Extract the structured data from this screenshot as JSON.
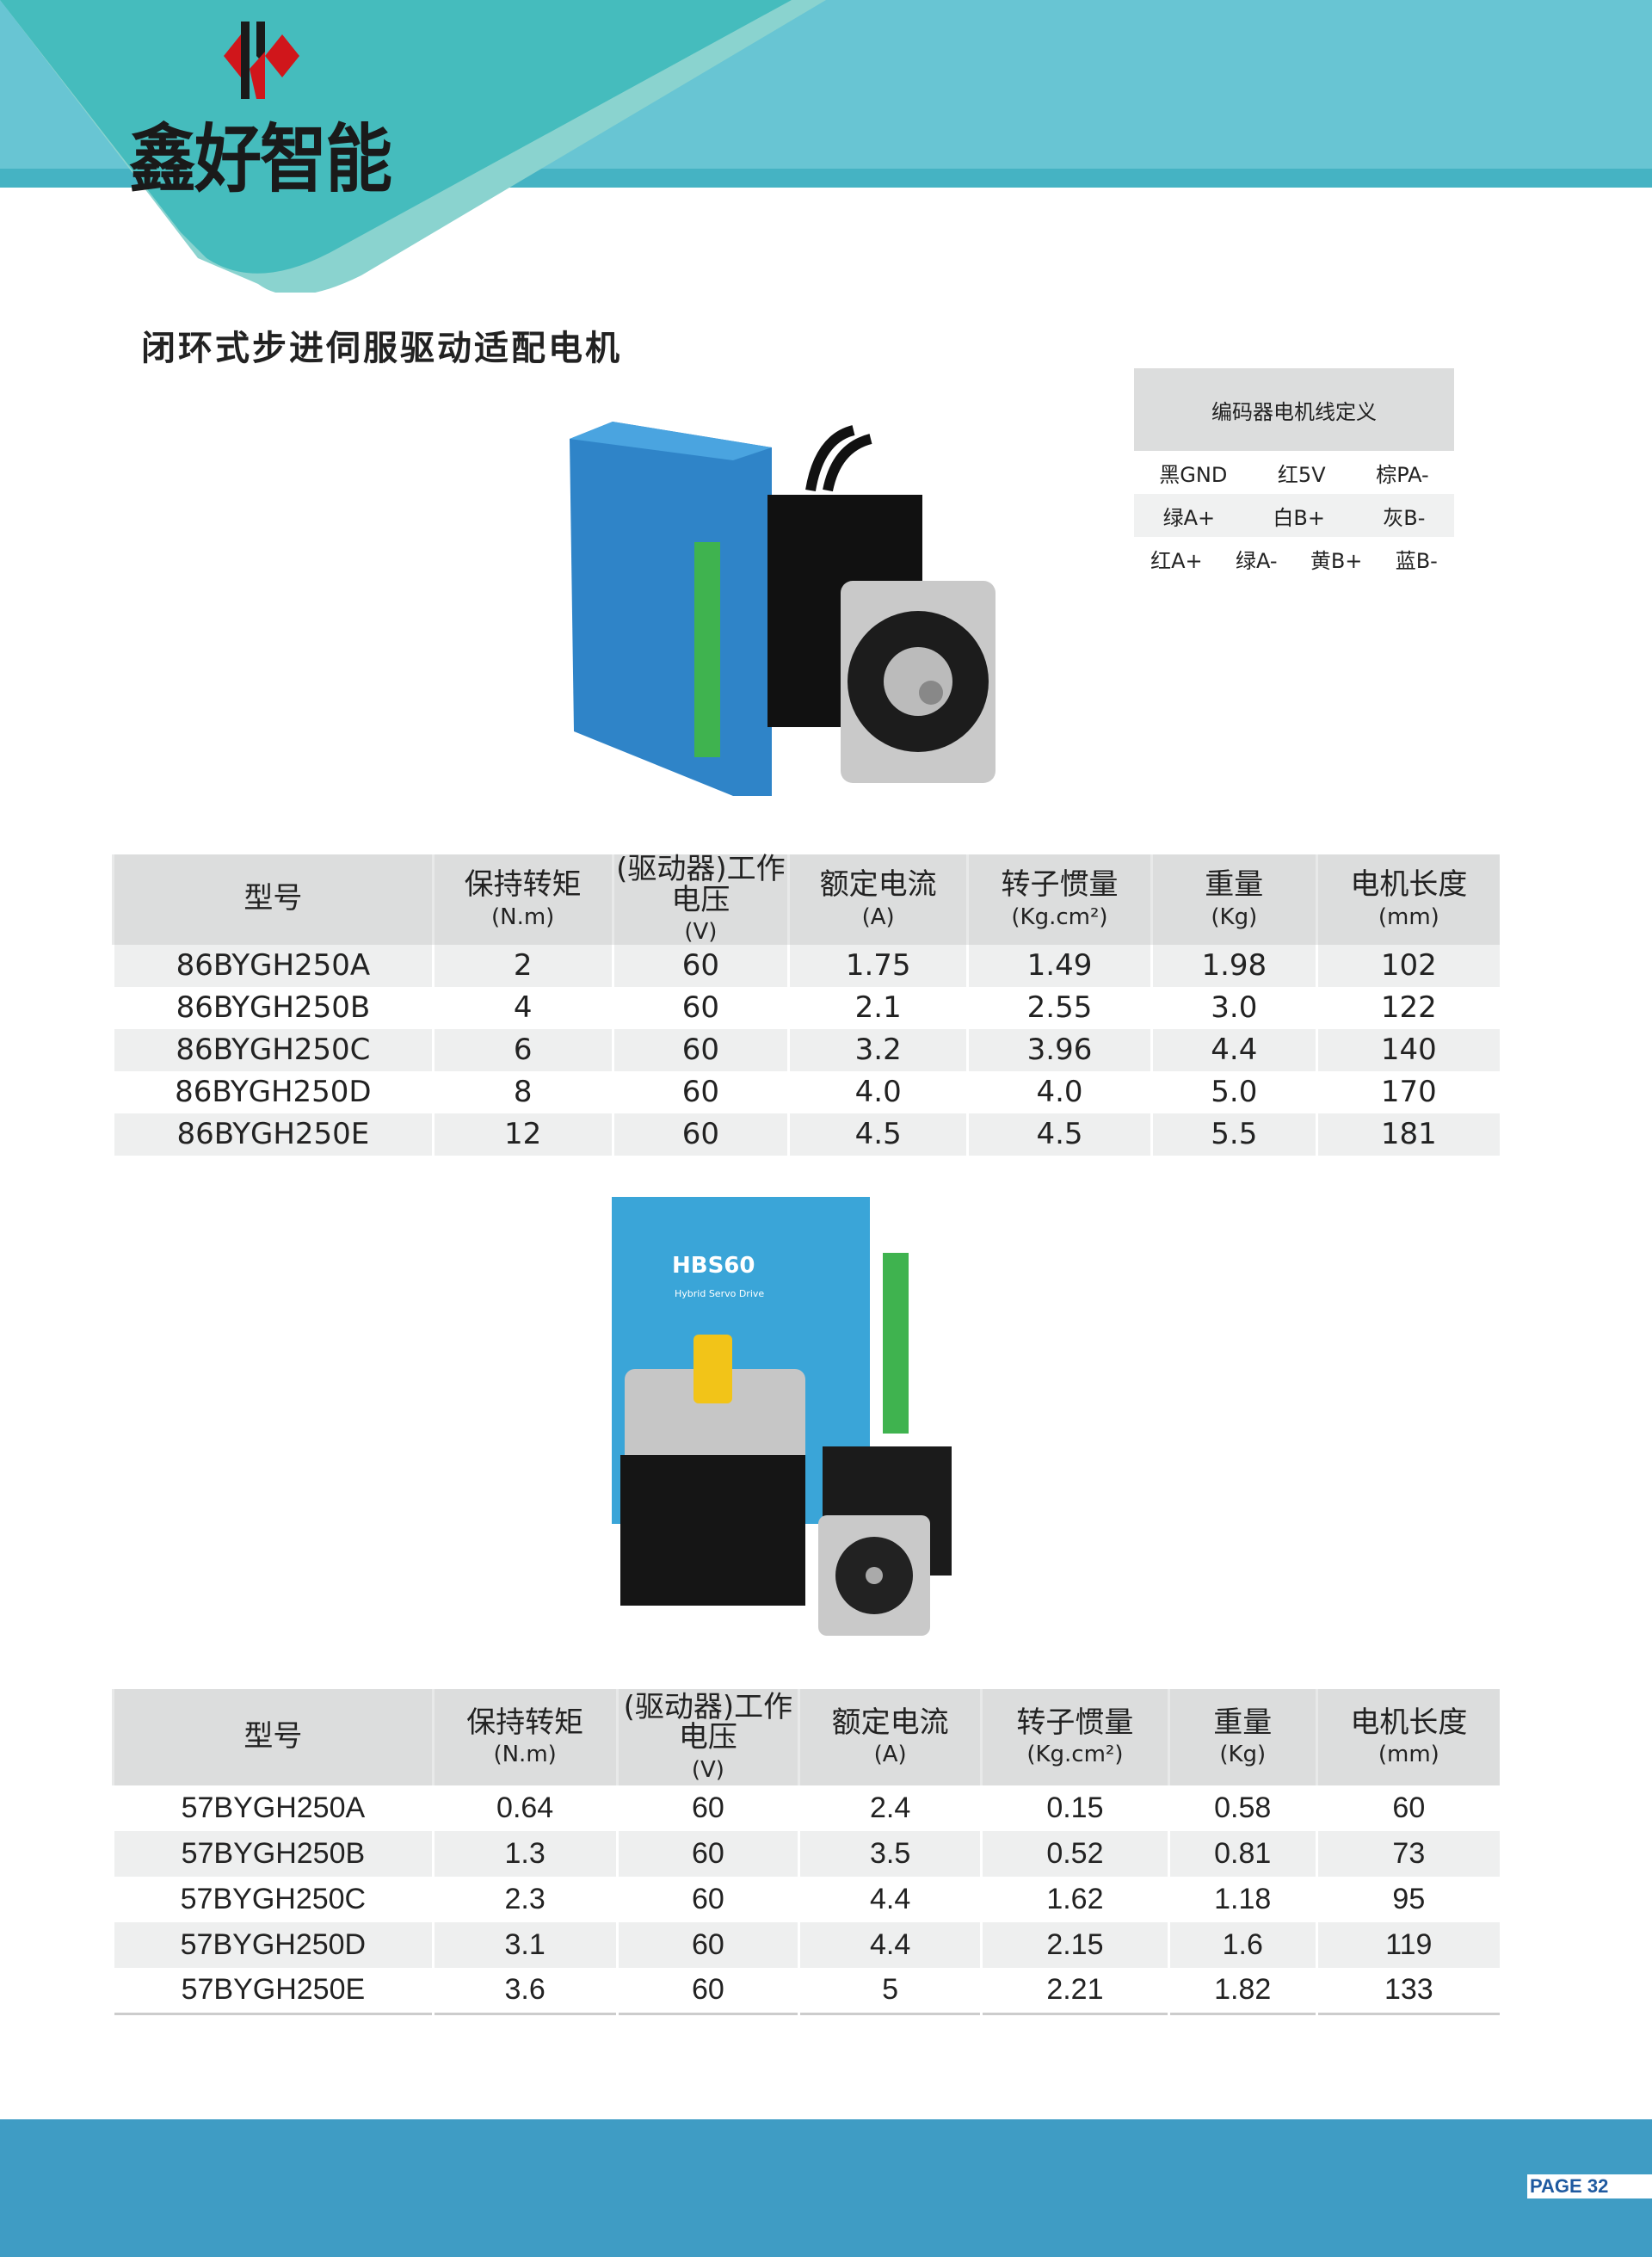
{
  "brand": {
    "name": "鑫好智能",
    "colors": {
      "teal": "#45bcc0",
      "light_teal": "#68c5d3",
      "red": "#d0161b",
      "footer": "#3f9cc4"
    }
  },
  "title": "闭环式步进伺服驱动适配电机",
  "encoder": {
    "title": "编码器电机线定义",
    "rows": [
      [
        "黑GND",
        "红5V",
        "棕PA-"
      ],
      [
        "绿A+",
        "白B+",
        "灰B-"
      ],
      [
        "红A+",
        "绿A-",
        "黄B+",
        "蓝B-"
      ]
    ]
  },
  "images": {
    "driver2_model": "HBS60",
    "driver2_subtitle": "Hybrid Servo Drive"
  },
  "table1": {
    "headers": [
      {
        "t": "型号",
        "u": ""
      },
      {
        "t": "保持转矩",
        "u": "(N.m)"
      },
      {
        "t": "(驱动器)工作电压",
        "u": "(V)"
      },
      {
        "t": "额定电流",
        "u": "(A)"
      },
      {
        "t": "转子惯量",
        "u": "(Kg.cm²)"
      },
      {
        "t": "重量",
        "u": "(Kg)"
      },
      {
        "t": "电机长度",
        "u": "(mm)"
      }
    ],
    "rows": [
      [
        "86BYGH250A",
        "2",
        "60",
        "1.75",
        "1.49",
        "1.98",
        "102"
      ],
      [
        "86BYGH250B",
        "4",
        "60",
        "2.1",
        "2.55",
        "3.0",
        "122"
      ],
      [
        "86BYGH250C",
        "6",
        "60",
        "3.2",
        "3.96",
        "4.4",
        "140"
      ],
      [
        "86BYGH250D",
        "8",
        "60",
        "4.0",
        "4.0",
        "5.0",
        "170"
      ],
      [
        "86BYGH250E",
        "12",
        "60",
        "4.5",
        "4.5",
        "5.5",
        "181"
      ]
    ]
  },
  "table2": {
    "headers": [
      {
        "t": "型号",
        "u": ""
      },
      {
        "t": "保持转矩",
        "u": "(N.m)"
      },
      {
        "t": "(驱动器)工作电压",
        "u": "(V)"
      },
      {
        "t": "额定电流",
        "u": "(A)"
      },
      {
        "t": "转子惯量",
        "u": "(Kg.cm²)"
      },
      {
        "t": "重量",
        "u": "(Kg)"
      },
      {
        "t": "电机长度",
        "u": "(mm)"
      }
    ],
    "rows": [
      [
        "57BYGH250A",
        "0.64",
        "60",
        "2.4",
        "0.15",
        "0.58",
        "60"
      ],
      [
        "57BYGH250B",
        "1.3",
        "60",
        "3.5",
        "0.52",
        "0.81",
        "73"
      ],
      [
        "57BYGH250C",
        "2.3",
        "60",
        "4.4",
        "1.62",
        "1.18",
        "95"
      ],
      [
        "57BYGH250D",
        "3.1",
        "60",
        "4.4",
        "2.15",
        "1.6",
        "119"
      ],
      [
        "57BYGH250E",
        "3.6",
        "60",
        "5",
        "2.21",
        "1.82",
        "133"
      ]
    ]
  },
  "footer": {
    "page": "PAGE 32"
  }
}
